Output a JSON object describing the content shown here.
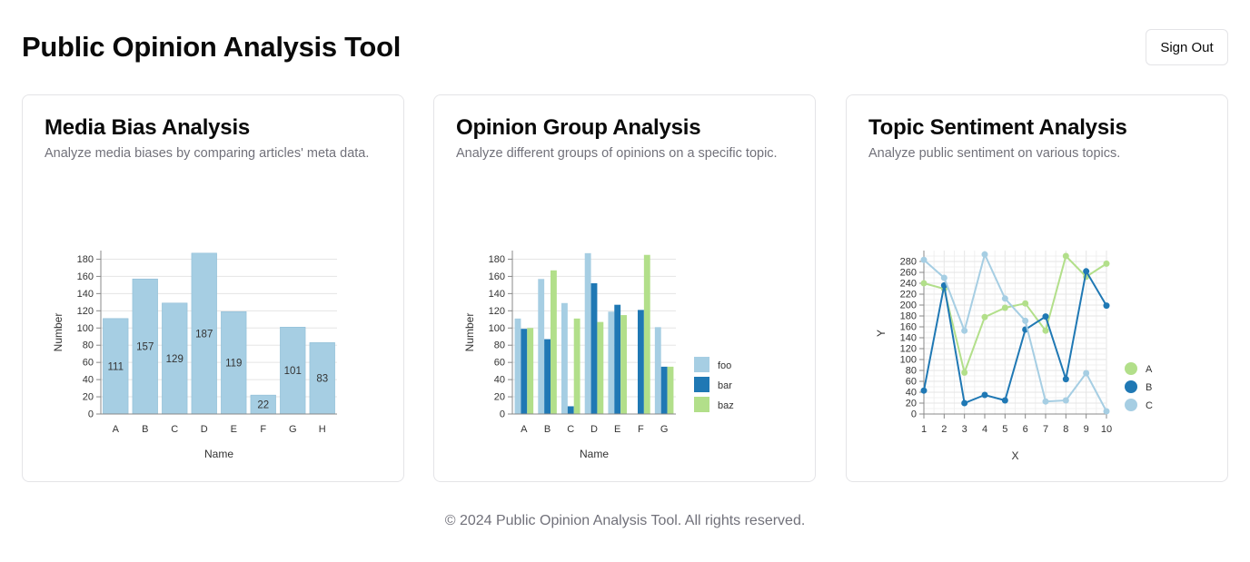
{
  "header": {
    "title": "Public Opinion Analysis Tool",
    "sign_out_label": "Sign Out"
  },
  "cards": [
    {
      "title": "Media Bias Analysis",
      "description": "Analyze media biases by comparing articles' meta data."
    },
    {
      "title": "Opinion Group Analysis",
      "description": "Analyze different groups of opinions on a specific topic."
    },
    {
      "title": "Topic Sentiment Analysis",
      "description": "Analyze public sentiment on various topics."
    }
  ],
  "footer": {
    "text": "© 2024 Public Opinion Analysis Tool. All rights reserved."
  },
  "colors": {
    "light_blue": "#a6cee3",
    "dark_blue": "#1f78b4",
    "light_green": "#b2df8a",
    "muted_text": "#71717a",
    "border": "#e4e4e7"
  },
  "chart_data": [
    {
      "type": "bar",
      "xlabel": "Name",
      "ylabel": "Number",
      "categories": [
        "A",
        "B",
        "C",
        "D",
        "E",
        "F",
        "G",
        "H"
      ],
      "values": [
        111,
        157,
        129,
        187,
        119,
        22,
        101,
        83
      ],
      "yticks": [
        0,
        20,
        40,
        60,
        80,
        100,
        120,
        140,
        160,
        180
      ],
      "ylim": [
        0,
        190
      ],
      "grid": true,
      "data_labels": true,
      "color": "#a6cee3"
    },
    {
      "type": "bar",
      "xlabel": "Name",
      "ylabel": "Number",
      "categories": [
        "A",
        "B",
        "C",
        "D",
        "E",
        "F",
        "G"
      ],
      "series": [
        {
          "name": "foo",
          "values": [
            111,
            157,
            129,
            187,
            119,
            0,
            101
          ],
          "color": "#a6cee3"
        },
        {
          "name": "bar",
          "values": [
            99,
            87,
            9,
            152,
            127,
            121,
            55
          ],
          "color": "#1f78b4"
        },
        {
          "name": "baz",
          "values": [
            100,
            167,
            111,
            107,
            115,
            185,
            55
          ],
          "color": "#b2df8a"
        }
      ],
      "yticks": [
        0,
        20,
        40,
        60,
        80,
        100,
        120,
        140,
        160,
        180
      ],
      "ylim": [
        0,
        190
      ],
      "grid": true,
      "legend": "right"
    },
    {
      "type": "line",
      "xlabel": "X",
      "ylabel": "Y",
      "x": [
        1,
        2,
        3,
        4,
        5,
        6,
        7,
        8,
        9,
        10
      ],
      "series": [
        {
          "name": "A",
          "values": [
            240,
            230,
            76,
            178,
            195,
            203,
            153,
            290,
            252,
            276
          ],
          "color": "#b2df8a"
        },
        {
          "name": "B",
          "values": [
            43,
            236,
            20,
            35,
            25,
            155,
            179,
            64,
            262,
            199
          ],
          "color": "#1f78b4"
        },
        {
          "name": "C",
          "values": [
            283,
            250,
            153,
            293,
            212,
            171,
            23,
            25,
            75,
            5
          ],
          "color": "#a6cee3"
        }
      ],
      "yticks": [
        0,
        20,
        40,
        60,
        80,
        100,
        120,
        140,
        160,
        180,
        200,
        220,
        240,
        260,
        280
      ],
      "ylim": [
        0,
        300
      ],
      "xlim": [
        1,
        10
      ],
      "grid": true,
      "legend": "right"
    }
  ]
}
